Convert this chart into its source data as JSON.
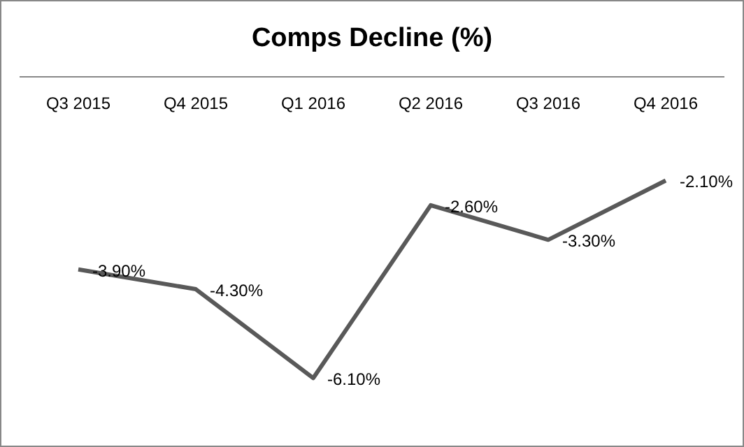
{
  "chart_data": {
    "type": "line",
    "title": "Comps Decline (%)",
    "categories": [
      "Q3 2015",
      "Q4 2015",
      "Q1 2016",
      "Q2 2016",
      "Q3 2016",
      "Q4 2016"
    ],
    "series": [
      {
        "color": "#595959",
        "values": [
          -3.9,
          -4.3,
          -6.1,
          -2.6,
          -3.3,
          -2.1
        ],
        "value_labels": [
          "-3.90%",
          "-4.30%",
          "-6.10%",
          "-2.60%",
          "-3.30%",
          "-2.10%"
        ]
      }
    ],
    "marker": "none"
  }
}
